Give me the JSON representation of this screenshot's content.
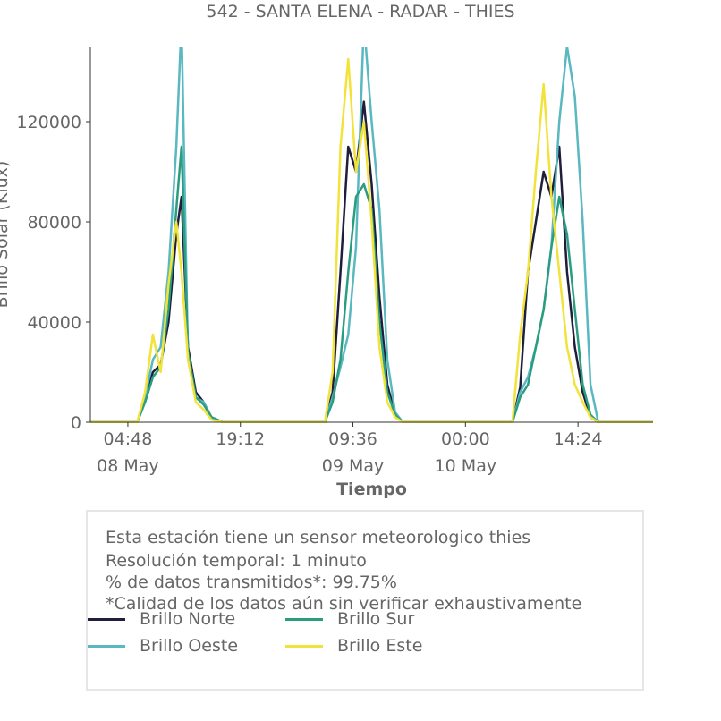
{
  "title": "542 - SANTA ELENA - RADAR - THIES",
  "chart_data": {
    "type": "line",
    "title": "542 - SANTA ELENA - RADAR - THIES",
    "xlabel": "Tiempo",
    "ylabel": "Brillo Solar (Klux)",
    "ylim": [
      0,
      150000
    ],
    "yticks": [
      0,
      40000,
      80000,
      120000
    ],
    "ytick_labels": [
      "0",
      "40000",
      "80000",
      "120000"
    ],
    "xlim": [
      "2024-05-08 00:00",
      "2024-05-11 00:00"
    ],
    "xticks": [
      {
        "t": "2024-05-08 04:48",
        "label": "04:48",
        "sublabel": "08 May"
      },
      {
        "t": "2024-05-08 19:12",
        "label": "19:12",
        "sublabel": ""
      },
      {
        "t": "2024-05-09 09:36",
        "label": "09:36",
        "sublabel": "09 May"
      },
      {
        "t": "2024-05-10 00:00",
        "label": "00:00",
        "sublabel": "10 May"
      },
      {
        "t": "2024-05-10 14:24",
        "label": "14:24",
        "sublabel": ""
      }
    ],
    "grid": false,
    "legend_position": "bottom",
    "series": [
      {
        "name": "Brillo Norte",
        "color": "#1f1f3d",
        "points": [
          [
            "2024-05-08 00:00",
            0
          ],
          [
            "2024-05-08 06:00",
            0
          ],
          [
            "2024-05-08 07:00",
            9000
          ],
          [
            "2024-05-08 08:00",
            20000
          ],
          [
            "2024-05-08 09:00",
            23000
          ],
          [
            "2024-05-08 10:00",
            40000
          ],
          [
            "2024-05-08 11:00",
            75000
          ],
          [
            "2024-05-08 11:40",
            90000
          ],
          [
            "2024-05-08 12:30",
            30000
          ],
          [
            "2024-05-08 13:30",
            12000
          ],
          [
            "2024-05-08 14:30",
            8000
          ],
          [
            "2024-05-08 15:30",
            2000
          ],
          [
            "2024-05-08 17:00",
            0
          ],
          [
            "2024-05-09 06:00",
            0
          ],
          [
            "2024-05-09 07:00",
            12000
          ],
          [
            "2024-05-09 08:00",
            60000
          ],
          [
            "2024-05-09 09:00",
            110000
          ],
          [
            "2024-05-09 10:00",
            100000
          ],
          [
            "2024-05-09 11:00",
            128000
          ],
          [
            "2024-05-09 12:00",
            95000
          ],
          [
            "2024-05-09 13:00",
            50000
          ],
          [
            "2024-05-09 14:00",
            15000
          ],
          [
            "2024-05-09 15:00",
            3000
          ],
          [
            "2024-05-09 16:00",
            0
          ],
          [
            "2024-05-10 06:00",
            0
          ],
          [
            "2024-05-10 07:00",
            14000
          ],
          [
            "2024-05-10 08:00",
            60000
          ],
          [
            "2024-05-10 09:00",
            80000
          ],
          [
            "2024-05-10 10:00",
            100000
          ],
          [
            "2024-05-10 11:00",
            90000
          ],
          [
            "2024-05-10 12:00",
            110000
          ],
          [
            "2024-05-10 13:00",
            60000
          ],
          [
            "2024-05-10 14:00",
            30000
          ],
          [
            "2024-05-10 15:00",
            12000
          ],
          [
            "2024-05-10 16:00",
            2000
          ],
          [
            "2024-05-10 17:00",
            0
          ],
          [
            "2024-05-11 00:00",
            0
          ]
        ]
      },
      {
        "name": "Brillo Sur",
        "color": "#2a9d80",
        "points": [
          [
            "2024-05-08 00:00",
            0
          ],
          [
            "2024-05-08 06:00",
            0
          ],
          [
            "2024-05-08 07:00",
            8000
          ],
          [
            "2024-05-08 08:00",
            18000
          ],
          [
            "2024-05-08 09:00",
            22000
          ],
          [
            "2024-05-08 10:00",
            45000
          ],
          [
            "2024-05-08 11:00",
            85000
          ],
          [
            "2024-05-08 11:40",
            110000
          ],
          [
            "2024-05-08 12:30",
            28000
          ],
          [
            "2024-05-08 13:30",
            10000
          ],
          [
            "2024-05-08 14:30",
            7000
          ],
          [
            "2024-05-08 15:30",
            2000
          ],
          [
            "2024-05-08 17:00",
            0
          ],
          [
            "2024-05-09 06:00",
            0
          ],
          [
            "2024-05-09 07:00",
            8000
          ],
          [
            "2024-05-09 08:00",
            25000
          ],
          [
            "2024-05-09 09:00",
            60000
          ],
          [
            "2024-05-09 10:00",
            90000
          ],
          [
            "2024-05-09 11:00",
            95000
          ],
          [
            "2024-05-09 12:00",
            85000
          ],
          [
            "2024-05-09 13:00",
            40000
          ],
          [
            "2024-05-09 14:00",
            12000
          ],
          [
            "2024-05-09 15:00",
            3000
          ],
          [
            "2024-05-09 16:00",
            0
          ],
          [
            "2024-05-10 06:00",
            0
          ],
          [
            "2024-05-10 07:00",
            10000
          ],
          [
            "2024-05-10 08:00",
            15000
          ],
          [
            "2024-05-10 09:00",
            30000
          ],
          [
            "2024-05-10 10:00",
            45000
          ],
          [
            "2024-05-10 11:00",
            70000
          ],
          [
            "2024-05-10 12:00",
            90000
          ],
          [
            "2024-05-10 13:00",
            75000
          ],
          [
            "2024-05-10 14:00",
            45000
          ],
          [
            "2024-05-10 15:00",
            15000
          ],
          [
            "2024-05-10 16:00",
            3000
          ],
          [
            "2024-05-10 17:00",
            0
          ],
          [
            "2024-05-11 00:00",
            0
          ]
        ]
      },
      {
        "name": "Brillo Oeste",
        "color": "#5ab8c0",
        "points": [
          [
            "2024-05-08 00:00",
            0
          ],
          [
            "2024-05-08 06:00",
            0
          ],
          [
            "2024-05-08 07:00",
            10000
          ],
          [
            "2024-05-08 08:00",
            25000
          ],
          [
            "2024-05-08 09:00",
            30000
          ],
          [
            "2024-05-08 10:00",
            60000
          ],
          [
            "2024-05-08 11:00",
            110000
          ],
          [
            "2024-05-08 11:40",
            160000
          ],
          [
            "2024-05-08 12:30",
            25000
          ],
          [
            "2024-05-08 13:30",
            10000
          ],
          [
            "2024-05-08 14:30",
            8000
          ],
          [
            "2024-05-08 15:30",
            2000
          ],
          [
            "2024-05-08 17:00",
            0
          ],
          [
            "2024-05-09 06:00",
            0
          ],
          [
            "2024-05-09 07:00",
            10000
          ],
          [
            "2024-05-09 08:00",
            22000
          ],
          [
            "2024-05-09 09:00",
            35000
          ],
          [
            "2024-05-09 10:00",
            70000
          ],
          [
            "2024-05-09 11:00",
            160000
          ],
          [
            "2024-05-09 12:00",
            120000
          ],
          [
            "2024-05-09 13:00",
            85000
          ],
          [
            "2024-05-09 14:00",
            25000
          ],
          [
            "2024-05-09 15:00",
            4000
          ],
          [
            "2024-05-09 16:00",
            0
          ],
          [
            "2024-05-10 06:00",
            0
          ],
          [
            "2024-05-10 07:00",
            12000
          ],
          [
            "2024-05-10 08:00",
            18000
          ],
          [
            "2024-05-10 09:00",
            30000
          ],
          [
            "2024-05-10 10:00",
            45000
          ],
          [
            "2024-05-10 11:00",
            70000
          ],
          [
            "2024-05-10 12:00",
            120000
          ],
          [
            "2024-05-10 13:00",
            150000
          ],
          [
            "2024-05-10 14:00",
            130000
          ],
          [
            "2024-05-10 15:00",
            80000
          ],
          [
            "2024-05-10 16:00",
            15000
          ],
          [
            "2024-05-10 17:00",
            0
          ],
          [
            "2024-05-11 00:00",
            0
          ]
        ]
      },
      {
        "name": "Brillo Este",
        "color": "#f2e33a",
        "points": [
          [
            "2024-05-08 00:00",
            0
          ],
          [
            "2024-05-08 06:00",
            0
          ],
          [
            "2024-05-08 07:00",
            12000
          ],
          [
            "2024-05-08 08:00",
            35000
          ],
          [
            "2024-05-08 09:00",
            20000
          ],
          [
            "2024-05-08 10:00",
            55000
          ],
          [
            "2024-05-08 11:00",
            80000
          ],
          [
            "2024-05-08 11:40",
            60000
          ],
          [
            "2024-05-08 12:30",
            25000
          ],
          [
            "2024-05-08 13:30",
            8000
          ],
          [
            "2024-05-08 14:30",
            5000
          ],
          [
            "2024-05-08 15:30",
            1000
          ],
          [
            "2024-05-08 17:00",
            0
          ],
          [
            "2024-05-09 06:00",
            0
          ],
          [
            "2024-05-09 07:00",
            20000
          ],
          [
            "2024-05-09 08:00",
            110000
          ],
          [
            "2024-05-09 09:00",
            145000
          ],
          [
            "2024-05-09 10:00",
            100000
          ],
          [
            "2024-05-09 11:00",
            120000
          ],
          [
            "2024-05-09 12:00",
            80000
          ],
          [
            "2024-05-09 13:00",
            30000
          ],
          [
            "2024-05-09 14:00",
            8000
          ],
          [
            "2024-05-09 15:00",
            2000
          ],
          [
            "2024-05-09 16:00",
            0
          ],
          [
            "2024-05-10 06:00",
            0
          ],
          [
            "2024-05-10 07:00",
            35000
          ],
          [
            "2024-05-10 08:00",
            60000
          ],
          [
            "2024-05-10 09:00",
            100000
          ],
          [
            "2024-05-10 10:00",
            135000
          ],
          [
            "2024-05-10 11:00",
            90000
          ],
          [
            "2024-05-10 12:00",
            60000
          ],
          [
            "2024-05-10 13:00",
            30000
          ],
          [
            "2024-05-10 14:00",
            15000
          ],
          [
            "2024-05-10 15:00",
            8000
          ],
          [
            "2024-05-10 16:00",
            2000
          ],
          [
            "2024-05-10 17:00",
            0
          ],
          [
            "2024-05-11 00:00",
            0
          ]
        ]
      }
    ]
  },
  "info": {
    "line1": "Esta estación tiene un sensor meteorologico thies",
    "line2": "Resolución temporal: 1 minuto",
    "line3": "% de datos transmitidos*: 99.75%",
    "line4": "*Calidad de los datos aún sin verificar exhaustivamente"
  },
  "legend": [
    {
      "label": "Brillo Norte",
      "color": "#1f1f3d"
    },
    {
      "label": "Brillo Sur",
      "color": "#2a9d80"
    },
    {
      "label": "Brillo Oeste",
      "color": "#5ab8c0"
    },
    {
      "label": "Brillo Este",
      "color": "#f2e33a"
    }
  ]
}
